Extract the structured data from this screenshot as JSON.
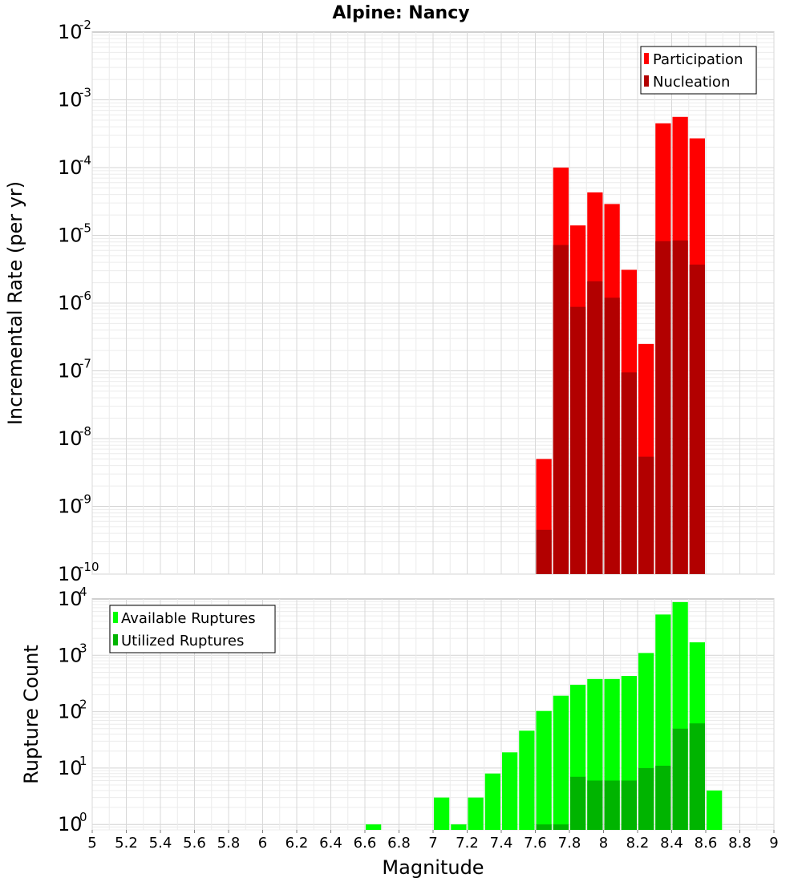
{
  "chart_data": [
    {
      "type": "bar",
      "title": "Alpine: Nancy",
      "xlabel": "",
      "ylabel": "Incremental Rate (per yr)",
      "xlim": [
        5,
        9
      ],
      "ylim": [
        1e-10,
        0.01
      ],
      "y_scale": "log",
      "y_ticks": [
        {
          "base": "10",
          "exp": "-2"
        },
        {
          "base": "10",
          "exp": "-3"
        },
        {
          "base": "10",
          "exp": "-4"
        },
        {
          "base": "10",
          "exp": "-5"
        },
        {
          "base": "10",
          "exp": "-6"
        },
        {
          "base": "10",
          "exp": "-7"
        },
        {
          "base": "10",
          "exp": "-8"
        },
        {
          "base": "10",
          "exp": "-9"
        },
        {
          "base": "10",
          "exp": "-10"
        }
      ],
      "legend_position": "top-right",
      "grid": true,
      "bin_width": 0.1,
      "x": [
        7.65,
        7.75,
        7.85,
        7.95,
        8.05,
        8.15,
        8.25,
        8.35,
        8.45,
        8.55
      ],
      "series": [
        {
          "name": "Participation",
          "color": "#ff0000",
          "values": [
            5e-09,
            0.0001,
            1.4e-05,
            4.3e-05,
            2.9e-05,
            3.1e-06,
            2.5e-07,
            0.00045,
            0.00056,
            0.00027
          ]
        },
        {
          "name": "Nucleation",
          "color": "#b20000",
          "values": [
            4.5e-10,
            7.2e-06,
            8.8e-07,
            2.1e-06,
            1.2e-06,
            9.5e-08,
            5.4e-09,
            8.2e-06,
            8.4e-06,
            3.7e-06
          ]
        }
      ]
    },
    {
      "type": "bar",
      "title": "",
      "xlabel": "Magnitude",
      "ylabel": "Rupture Count",
      "xlim": [
        5,
        9
      ],
      "ylim": [
        0.8,
        10000
      ],
      "y_scale": "log",
      "y_ticks": [
        {
          "base": "10",
          "exp": "4"
        },
        {
          "base": "10",
          "exp": "3"
        },
        {
          "base": "10",
          "exp": "2"
        },
        {
          "base": "10",
          "exp": "1"
        },
        {
          "base": "10",
          "exp": "0"
        }
      ],
      "x_ticks": [
        "5",
        "5.2",
        "5.4",
        "5.6",
        "5.8",
        "6",
        "6.2",
        "6.4",
        "6.6",
        "6.8",
        "7",
        "7.2",
        "7.4",
        "7.6",
        "7.8",
        "8",
        "8.2",
        "8.4",
        "8.6",
        "8.8",
        "9"
      ],
      "legend_position": "top-left",
      "grid": true,
      "bin_width": 0.1,
      "x": [
        6.65,
        7.05,
        7.15,
        7.25,
        7.35,
        7.45,
        7.55,
        7.65,
        7.75,
        7.85,
        7.95,
        8.05,
        8.15,
        8.25,
        8.35,
        8.45,
        8.55,
        8.65
      ],
      "series": [
        {
          "name": "Available Ruptures",
          "color": "#00ff00",
          "values": [
            1,
            3,
            1,
            3,
            8,
            19,
            46,
            103,
            192,
            300,
            380,
            380,
            430,
            1100,
            5300,
            8800,
            1700,
            4
          ]
        },
        {
          "name": "Utilized Ruptures",
          "color": "#00b400",
          "values": [
            0,
            0,
            0,
            0,
            0,
            0,
            0,
            1,
            1,
            7,
            6,
            6,
            6,
            10,
            11,
            50,
            62,
            0
          ]
        }
      ]
    }
  ]
}
